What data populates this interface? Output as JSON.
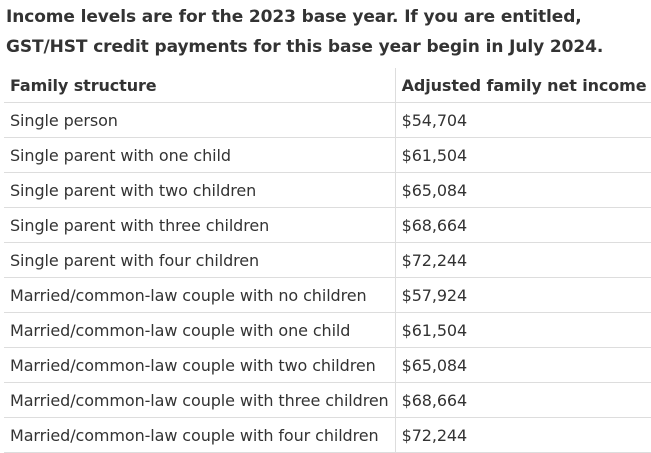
{
  "intro": "Income levels are for the 2023 base year. If you are entitled, GST/HST credit payments for this base year begin in July 2024.",
  "table": {
    "headers": [
      "Family structure",
      "Adjusted family net income"
    ],
    "rows": [
      [
        "Single person",
        "$54,704"
      ],
      [
        "Single parent with one child",
        "$61,504"
      ],
      [
        "Single parent with two children",
        "$65,084"
      ],
      [
        "Single parent with three children",
        "$68,664"
      ],
      [
        "Single parent with four children",
        "$72,244"
      ],
      [
        "Married/common-law couple with no children",
        "$57,924"
      ],
      [
        "Married/common-law couple with one child",
        "$61,504"
      ],
      [
        "Married/common-law couple with two children",
        "$65,084"
      ],
      [
        "Married/common-law couple with three children",
        "$68,664"
      ],
      [
        "Married/common-law couple with four children",
        "$72,244"
      ]
    ]
  }
}
